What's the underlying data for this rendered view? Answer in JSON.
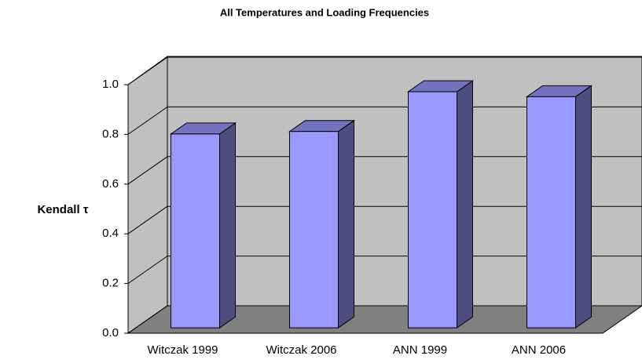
{
  "chart_data": {
    "type": "bar3d",
    "title": "All Temperatures and Loading Frequencies",
    "y_label": "Kendall τ",
    "categories": [
      "Witczak 1999",
      "Witczak 2006",
      "ANN 1999",
      "ANN 2006"
    ],
    "values": [
      0.78,
      0.79,
      0.95,
      0.93
    ],
    "color": "#9999ff",
    "ylim": [
      0,
      1
    ],
    "yticks": [
      {
        "value": 0,
        "label": "0.0"
      },
      {
        "value": 0.2,
        "label": "0.2"
      },
      {
        "value": 0.4,
        "label": "0.4"
      },
      {
        "value": 0.6,
        "label": "0.6"
      },
      {
        "value": 0.8,
        "label": "0.8"
      },
      {
        "value": 1,
        "label": "1.0"
      }
    ],
    "grid": true
  }
}
